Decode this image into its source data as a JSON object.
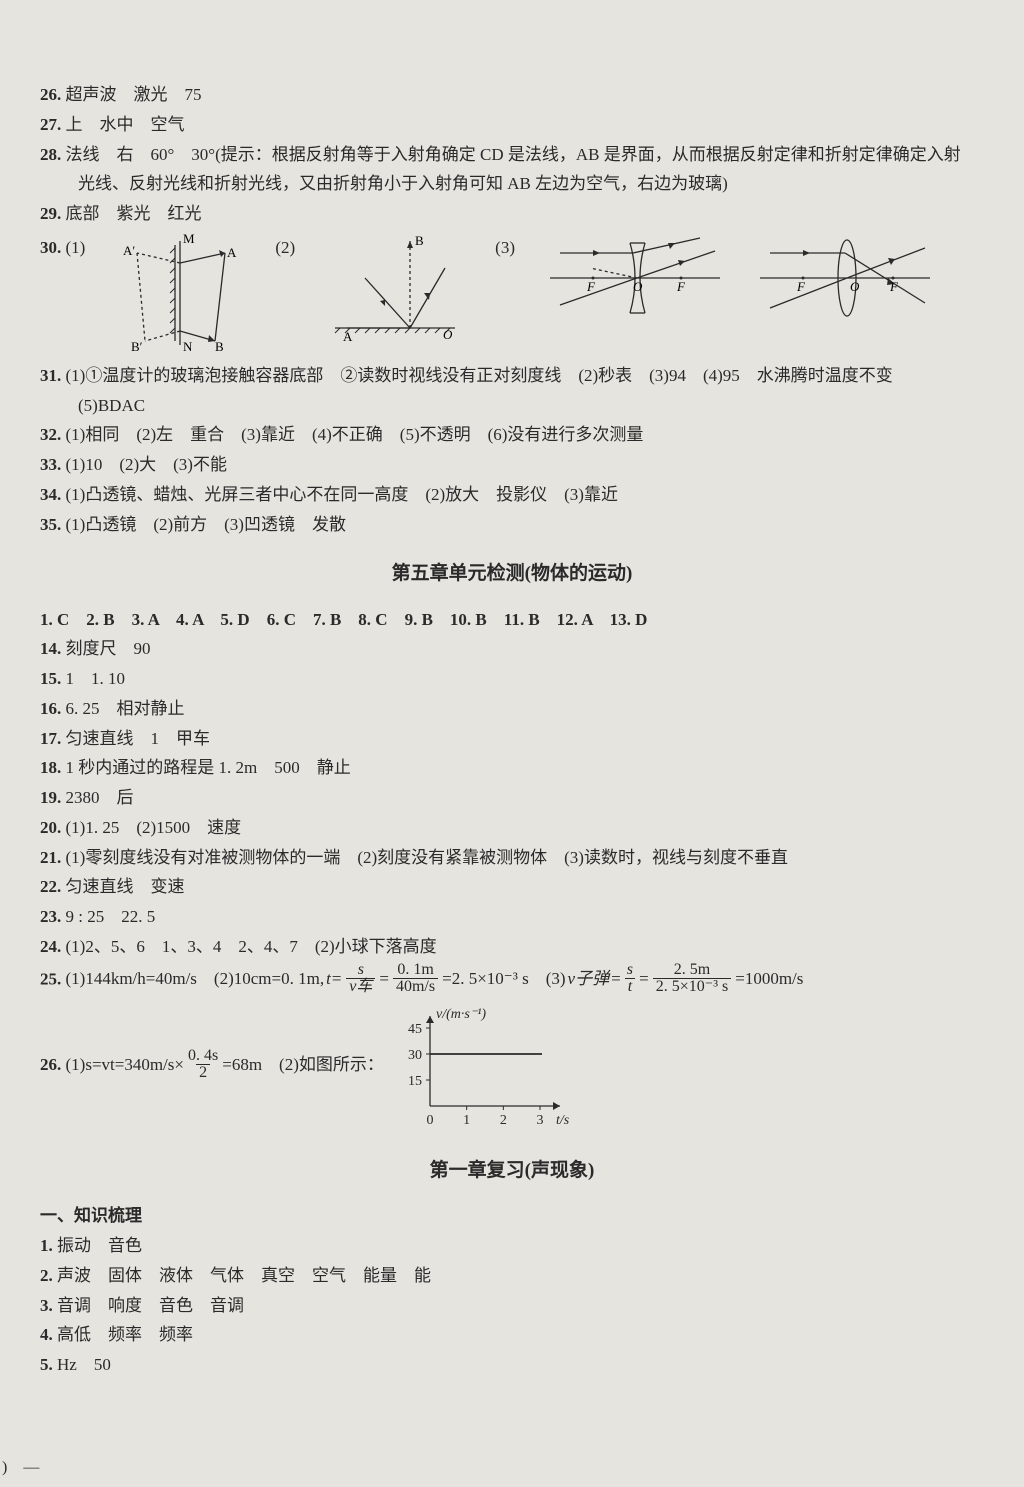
{
  "q26": {
    "n": "26.",
    "t": "超声波　激光　75"
  },
  "q27": {
    "n": "27.",
    "t": "上　水中　空气"
  },
  "q28": {
    "n": "28.",
    "a": "法线　右　60°　30°(提示：根据反射角等于入射角确定 CD 是法线，AB 是界面，从而根据反射定律和折射定律确定入射",
    "b": "光线、反射光线和折射光线，又由折射角小于入射角可知 AB 左边为空气，右边为玻璃)"
  },
  "q29": {
    "n": "29.",
    "t": "底部　紫光　红光"
  },
  "q30": {
    "n": "30.",
    "p1": "(1)",
    "p2": "(2)",
    "p3": "(3)"
  },
  "diag": {
    "lbl_M": "M",
    "lbl_N": "N",
    "lbl_A": "A",
    "lbl_Ap": "A′",
    "lbl_B": "B",
    "lbl_Bp": "B′",
    "lbl2_A": "A",
    "lbl2_B": "B",
    "lbl2_O": "O",
    "lbl3_F1": "F",
    "lbl3_O": "O",
    "lbl3_F2": "F",
    "lbl4_F1": "F",
    "lbl4_O": "O",
    "lbl4_F2": "F",
    "stroke": "#2a2a2a"
  },
  "q31": {
    "n": "31.",
    "a": "(1)①温度计的玻璃泡接触容器底部　②读数时视线没有正对刻度线　(2)秒表　(3)94　(4)95　水沸腾时温度不变",
    "b": "(5)BDAC"
  },
  "q32": {
    "n": "32.",
    "t": "(1)相同　(2)左　重合　(3)靠近　(4)不正确　(5)不透明　(6)没有进行多次测量"
  },
  "q33": {
    "n": "33.",
    "t": "(1)10　(2)大　(3)不能"
  },
  "q34": {
    "n": "34.",
    "t": "(1)凸透镜、蜡烛、光屏三者中心不在同一高度　(2)放大　投影仪　(3)靠近"
  },
  "q35": {
    "n": "35.",
    "t": "(1)凸透镜　(2)前方　(3)凹透镜　发散"
  },
  "sec5": "第五章单元检测(物体的运动)",
  "mcq": "1. C　2. B　3. A　4. A　5. D　6. C　7. B　8. C　9. B　10. B　11. B　12. A　13. D",
  "a14": {
    "n": "14.",
    "t": "刻度尺　90"
  },
  "a15": {
    "n": "15.",
    "t": "1　1. 10"
  },
  "a16": {
    "n": "16.",
    "t": "6. 25　相对静止"
  },
  "a17": {
    "n": "17.",
    "t": "匀速直线　1　甲车"
  },
  "a18": {
    "n": "18.",
    "t": "1 秒内通过的路程是 1. 2m　500　静止"
  },
  "a19": {
    "n": "19.",
    "t": "2380　后"
  },
  "a20": {
    "n": "20.",
    "t": "(1)1. 25　(2)1500　速度"
  },
  "a21": {
    "n": "21.",
    "t": "(1)零刻度线没有对准被测物体的一端　(2)刻度没有紧靠被测物体　(3)读数时，视线与刻度不垂直"
  },
  "a22": {
    "n": "22.",
    "t": "匀速直线　变速"
  },
  "a23": {
    "n": "23.",
    "t": "9 : 25　22. 5"
  },
  "a24": {
    "n": "24.",
    "t": "(1)2、5、6　1、3、4　2、4、7　(2)小球下落高度"
  },
  "a25": {
    "n": "25.",
    "p1": "(1)144km/h=40m/s　(2)10cm=0. 1m,",
    "t_eq": "t=",
    "s_sym": "s",
    "v_sub": "v车",
    "eq2": "=",
    "num2": "0. 1m",
    "den2": "40m/s",
    "tail2": "=2. 5×10⁻³ s　(3)",
    "v_hand": "v子弹",
    "eq3": "=",
    "s_sym3": "s",
    "t_sym3": "t",
    "eq4": "=",
    "num4": "2. 5m",
    "den4": "2. 5×10⁻³ s",
    "tail4": "=1000m/s"
  },
  "a26": {
    "n": "26.",
    "head": "(1)s=vt=340m/s×",
    "num": "0. 4s",
    "den": "2",
    "tail": "=68m　(2)如图所示：",
    "graph": {
      "ylabel": "v/(m·s⁻¹)",
      "xlabel": "t/s",
      "yticks": [
        "45",
        "30",
        "15"
      ],
      "xticks": [
        "0",
        "1",
        "2",
        "3"
      ],
      "val": 30,
      "ymax": 45,
      "xmax": 3,
      "axis_color": "#2a2a2a",
      "line_color": "#2a2a2a",
      "fontsize": 14
    }
  },
  "sec1": "第一章复习(声现象)",
  "kh": "一、知识梳理",
  "k1": {
    "n": "1.",
    "t": "振动　音色"
  },
  "k2": {
    "n": "2.",
    "t": "声波　固体　液体　气体　真空　空气　能量　能"
  },
  "k3": {
    "n": "3.",
    "t": "音调　响度　音色　音调"
  },
  "k4": {
    "n": "4.",
    "t": "高低　频率　频率"
  },
  "k5": {
    "n": "5.",
    "t": "Hz　50"
  },
  "pgnum": ") —"
}
